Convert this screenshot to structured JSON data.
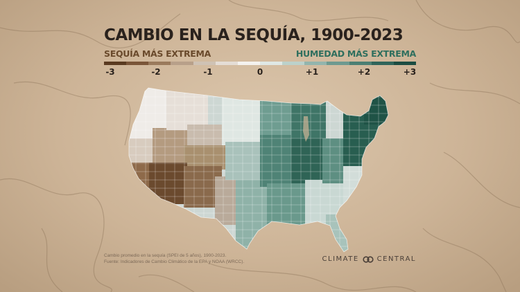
{
  "title": "CAMBIO EN LA SEQUÍA, 1900-2023",
  "legend": {
    "dry_label": "SEQUÍA MÁS EXTREMA",
    "wet_label": "HUMEDAD MÁS EXTREMA",
    "ticks": [
      "-3",
      "-2",
      "-1",
      "0",
      "+1",
      "+2",
      "+3"
    ],
    "range": [
      -3,
      3
    ],
    "colors": [
      "#5a3a20",
      "#7a5538",
      "#9a7a5c",
      "#b8a08a",
      "#cfc2b4",
      "#e4ddd6",
      "#f4f2ef",
      "#dfe8e5",
      "#bcd1cb",
      "#93b5ad",
      "#6e9a90",
      "#4c7f73",
      "#30655a",
      "#1c4d42"
    ]
  },
  "footnote": {
    "line1": "Cambio promedio en la sequía (SPEI de 5 años), 1900-2023.",
    "line2": "Fuente: Indicadores de Cambio Climático de la EPA y NOAA (WRCC)."
  },
  "brand": {
    "left": "CLIMATE",
    "right": "CENTRAL",
    "icon": "linked-rings-icon"
  }
}
